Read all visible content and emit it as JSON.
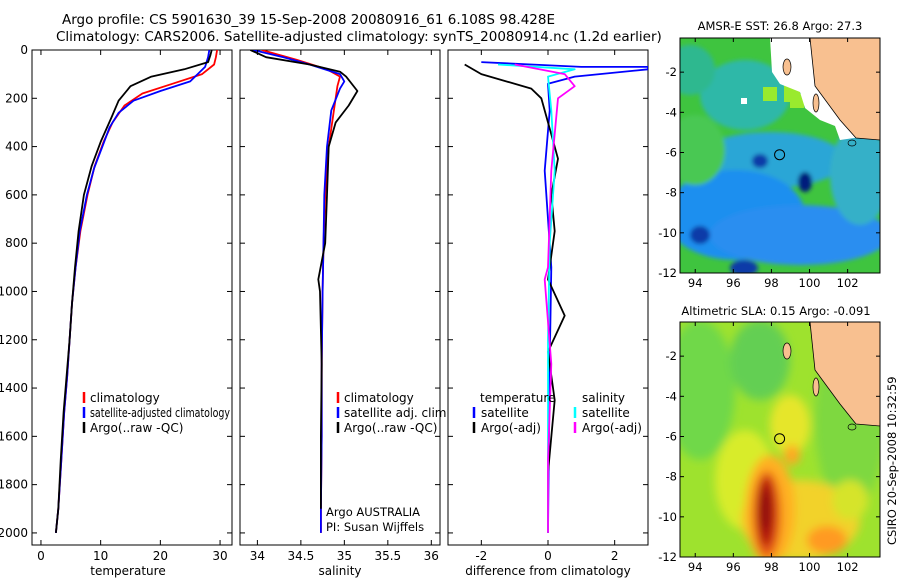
{
  "header": {
    "line1": "Argo profile: CS 5901630_39 15-Sep-2008 20080916_61 6.108S 98.428E",
    "line2": "Climatology: CARS2006. Satellite-adjusted climatology: synTS_20080914.nc (1.2d earlier)"
  },
  "colors": {
    "climatology": "#ff0000",
    "satellite": "#0000ff",
    "argo": "#000000",
    "sat_sal_diff": "#00ffff",
    "argo_sal_diff": "#ff00ff",
    "land": "#f8c090"
  },
  "side_label": "CSIRO 20-Sep-2008 10:32:59",
  "chart_data": [
    {
      "type": "line",
      "xlabel": "temperature",
      "xlim": [
        -1.5,
        32
      ],
      "ylim": [
        0,
        2050
      ],
      "y_inverted": true,
      "xticks": [
        0,
        10,
        20,
        30
      ],
      "yticks": [
        0,
        200,
        400,
        600,
        800,
        1000,
        1200,
        1400,
        1600,
        1800,
        2000
      ],
      "legend": {
        "position": "lower-right",
        "entries": [
          "climatology",
          "satellite-adjusted climatology",
          "Argo(..raw -QC)"
        ]
      },
      "series": [
        {
          "name": "climatology",
          "color": "#ff0000",
          "x": [
            29.5,
            29.3,
            29.0,
            27.0,
            22.0,
            17.0,
            14.0,
            12.0,
            10.5,
            9.0,
            7.8,
            6.6,
            5.8,
            5.2,
            4.8,
            4.4,
            3.9,
            3.4,
            2.9,
            2.5
          ],
          "y": [
            0,
            30,
            60,
            100,
            140,
            180,
            230,
            300,
            380,
            480,
            600,
            750,
            900,
            1050,
            1200,
            1350,
            1500,
            1700,
            1900,
            2000
          ]
        },
        {
          "name": "satellite-adjusted climatology",
          "color": "#0000ff",
          "x": [
            28.2,
            28.0,
            27.5,
            25.0,
            20.0,
            15.5,
            13.0,
            11.5,
            10.3,
            8.9,
            7.7,
            6.5,
            5.8,
            5.2,
            4.8,
            4.4,
            3.9,
            3.4,
            2.9,
            2.5
          ],
          "y": [
            0,
            30,
            70,
            130,
            170,
            210,
            260,
            320,
            400,
            490,
            600,
            750,
            900,
            1050,
            1200,
            1350,
            1500,
            1700,
            1900,
            2000
          ]
        },
        {
          "name": "Argo(..raw -QC)",
          "color": "#000000",
          "x": [
            28.6,
            28.4,
            28.0,
            24.0,
            18.5,
            15.0,
            13.0,
            11.8,
            10.0,
            8.5,
            7.2,
            6.3,
            5.7,
            5.2,
            4.8,
            4.3,
            3.8,
            3.3,
            2.9,
            2.5
          ],
          "y": [
            0,
            20,
            50,
            80,
            110,
            150,
            210,
            280,
            380,
            480,
            600,
            750,
            900,
            1050,
            1200,
            1350,
            1500,
            1700,
            1900,
            2000
          ]
        }
      ]
    },
    {
      "type": "line",
      "xlabel": "salinity",
      "xlim": [
        33.8,
        36.1
      ],
      "ylim": [
        0,
        2050
      ],
      "y_inverted": true,
      "xticks": [
        34,
        34.5,
        35,
        35.5,
        36
      ],
      "legend": {
        "position": "lower-right",
        "entries": [
          "climatology",
          "satellite adj. clim.",
          "Argo(..raw -QC)"
        ]
      },
      "annotation": [
        "Argo AUSTRALIA",
        "PI: Susan Wijffels"
      ],
      "series": [
        {
          "name": "climatology",
          "color": "#ff0000",
          "x": [
            34.05,
            34.45,
            34.8,
            34.95,
            34.92,
            34.88,
            34.82,
            34.78,
            34.76,
            34.75,
            34.74,
            34.74,
            34.73,
            34.73
          ],
          "y": [
            0,
            40,
            80,
            110,
            150,
            250,
            400,
            600,
            800,
            1000,
            1300,
            1600,
            1900,
            2000
          ]
        },
        {
          "name": "satellite adj. clim.",
          "color": "#0000ff",
          "x": [
            33.95,
            34.3,
            34.6,
            34.95,
            35.0,
            34.95,
            34.85,
            34.8,
            34.77,
            34.76,
            34.75,
            34.74,
            34.74,
            34.73,
            34.73
          ],
          "y": [
            0,
            30,
            60,
            100,
            130,
            160,
            250,
            400,
            600,
            800,
            1000,
            1300,
            1600,
            1900,
            2000
          ]
        },
        {
          "name": "Argo(..raw -QC)",
          "color": "#000000",
          "x": [
            33.92,
            34.1,
            34.6,
            34.95,
            35.02,
            35.15,
            35.05,
            34.9,
            34.82,
            34.8,
            34.78,
            34.7,
            34.72,
            34.74,
            34.73,
            34.73
          ],
          "y": [
            0,
            30,
            60,
            90,
            110,
            170,
            230,
            300,
            400,
            600,
            800,
            950,
            1000,
            1300,
            1600,
            1900
          ]
        }
      ]
    },
    {
      "type": "line",
      "xlabel": "difference from climatology",
      "xlim": [
        -3.0,
        3.0
      ],
      "ylim": [
        0,
        2050
      ],
      "y_inverted": true,
      "xticks": [
        -2,
        0,
        2
      ],
      "legend": {
        "position": "lower-center",
        "groups": [
          {
            "heading": "temperature",
            "entries": [
              "satellite",
              "Argo(-adj)"
            ]
          },
          {
            "heading": "salinity",
            "entries": [
              "satellite",
              "Argo(-adj)"
            ]
          }
        ]
      },
      "series": [
        {
          "name": "satellite",
          "group": "temperature",
          "color": "#0000ff",
          "x": [
            -2.0,
            1.0,
            3.0,
            3.0,
            0.8,
            0.0,
            0.05,
            -0.1,
            0.1,
            0.05,
            0.02,
            0.0
          ],
          "y": [
            50,
            70,
            70,
            80,
            110,
            140,
            250,
            500,
            900,
            1300,
            1700,
            2000
          ]
        },
        {
          "name": "Argo(-adj)",
          "group": "temperature",
          "color": "#000000",
          "x": [
            -2.5,
            -2.0,
            -0.5,
            -0.2,
            0.0,
            0.3,
            0.1,
            0.2,
            0.0,
            0.5,
            0.0,
            0.2,
            0.0,
            0.0
          ],
          "y": [
            60,
            100,
            160,
            200,
            300,
            450,
            600,
            750,
            950,
            1100,
            1250,
            1450,
            1750,
            2000
          ]
        },
        {
          "name": "satellite",
          "group": "salinity",
          "color": "#00ffff",
          "x": [
            -1.5,
            0.8,
            0.0,
            0.1,
            0.2,
            0.05,
            0.0,
            0.0,
            0.0
          ],
          "y": [
            60,
            80,
            110,
            250,
            500,
            800,
            1200,
            1600,
            2000
          ]
        },
        {
          "name": "Argo(-adj)",
          "group": "salinity",
          "color": "#ff00ff",
          "x": [
            -1.0,
            0.5,
            0.8,
            0.3,
            0.1,
            0.0,
            -0.1,
            0.1,
            0.0,
            0.0
          ],
          "y": [
            60,
            100,
            150,
            200,
            500,
            900,
            950,
            1300,
            1700,
            2000
          ]
        }
      ]
    },
    {
      "type": "heatmap",
      "title": "AMSR-E SST: 26.8 Argo: 27.3",
      "xlim": [
        93.2,
        103.7
      ],
      "ylim": [
        -12.0,
        -0.3
      ],
      "xticks": [
        94,
        96,
        98,
        100,
        102
      ],
      "yticks": [
        -2,
        -4,
        -6,
        -8,
        -10,
        -12
      ],
      "argo_position": {
        "lon": 98.43,
        "lat": -6.11
      }
    },
    {
      "type": "heatmap",
      "title": "Altimetric SLA: 0.15 Argo: -0.091",
      "xlim": [
        93.2,
        103.7
      ],
      "ylim": [
        -12.0,
        -0.3
      ],
      "xticks": [
        94,
        96,
        98,
        100,
        102
      ],
      "yticks": [
        -2,
        -4,
        -6,
        -8,
        -10,
        -12
      ],
      "argo_position": {
        "lon": 98.43,
        "lat": -6.11
      }
    }
  ]
}
